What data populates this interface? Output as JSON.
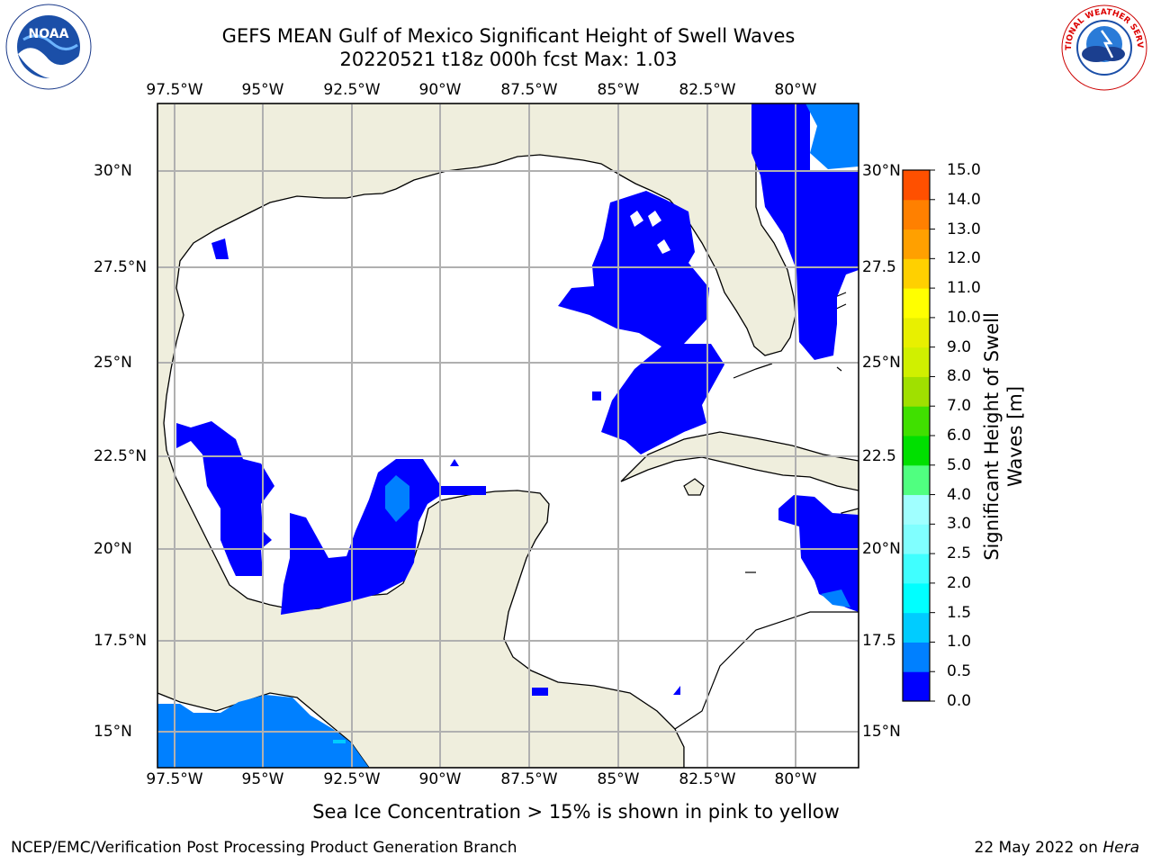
{
  "header": {
    "title_line1": "GEFS MEAN Gulf of Mexico Significant Height of Swell Waves",
    "title_line2": "20220521 t18z 000h fcst   Max: 1.03"
  },
  "map": {
    "lon_labels": [
      "97.5°W",
      "95°W",
      "92.5°W",
      "90°W",
      "87.5°W",
      "85°W",
      "82.5°W",
      "80°W"
    ],
    "lat_labels": [
      "30°N",
      "27.5°N",
      "25°N",
      "22.5°N",
      "20°N",
      "17.5°N",
      "15°N"
    ],
    "right_lat_labels": [
      "30°N",
      "27.5",
      "25°N",
      "22.5",
      "20°N",
      "17.5",
      "15°N"
    ],
    "land_color": "#efeedd",
    "ocean_color": "#ffffff"
  },
  "colorbar": {
    "title_line1": "Significant Height of Swell",
    "title_line2": "Waves [m]",
    "tick_labels": [
      "0.0",
      "0.5",
      "1.0",
      "1.5",
      "2.0",
      "2.5",
      "3.0",
      "4.0",
      "5.0",
      "6.0",
      "7.0",
      "8.0",
      "9.0",
      "10.0",
      "11.0",
      "12.0",
      "13.0",
      "14.0",
      "15.0"
    ],
    "colors": [
      "#0000ff",
      "#0080ff",
      "#00ccff",
      "#00ffff",
      "#40ffff",
      "#80ffff",
      "#a0ffff",
      "#50ff80",
      "#00e000",
      "#40e000",
      "#a0e000",
      "#d0f000",
      "#e8f000",
      "#ffff00",
      "#ffd000",
      "#ffa000",
      "#ff8000",
      "#ff5000",
      "#ff2000",
      "#ff0000"
    ]
  },
  "note": "Sea Ice Concentration > 15% is shown in pink to yellow",
  "footer": {
    "left": "NCEP/EMC/Verification Post Processing Product Generation Branch",
    "right_date": "22 May 2022 on ",
    "right_host": "Hera"
  },
  "logos": {
    "noaa_text": "NOAA",
    "nws_text": "NATIONAL WEATHER SERVICE"
  }
}
